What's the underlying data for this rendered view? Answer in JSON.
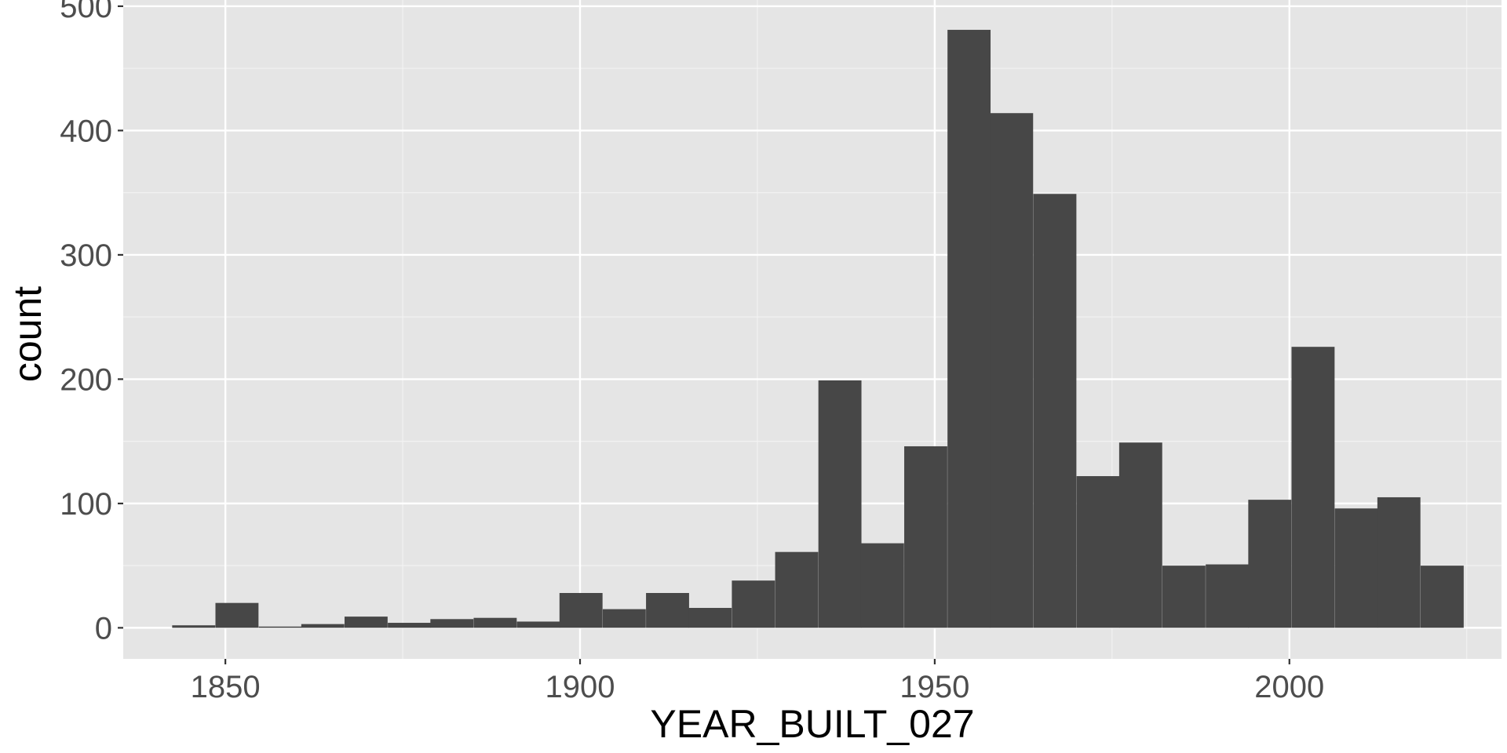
{
  "chart_data": {
    "type": "bar",
    "subtype": "histogram",
    "title": "",
    "xlabel": "YEAR_BUILT_027",
    "ylabel": "count",
    "xlim": [
      1835.6,
      2029.9
    ],
    "ylim": [
      -25,
      505
    ],
    "bin_width": 6.07,
    "bins": [
      {
        "start": 1842.5,
        "count": 2
      },
      {
        "start": 1848.6,
        "count": 20
      },
      {
        "start": 1854.7,
        "count": 1
      },
      {
        "start": 1860.7,
        "count": 3
      },
      {
        "start": 1866.8,
        "count": 9
      },
      {
        "start": 1872.9,
        "count": 4
      },
      {
        "start": 1878.9,
        "count": 7
      },
      {
        "start": 1885.0,
        "count": 8
      },
      {
        "start": 1891.1,
        "count": 5
      },
      {
        "start": 1897.1,
        "count": 28
      },
      {
        "start": 1903.2,
        "count": 15
      },
      {
        "start": 1909.3,
        "count": 28
      },
      {
        "start": 1915.3,
        "count": 16
      },
      {
        "start": 1921.4,
        "count": 38
      },
      {
        "start": 1927.5,
        "count": 61
      },
      {
        "start": 1933.6,
        "count": 199
      },
      {
        "start": 1939.6,
        "count": 68
      },
      {
        "start": 1945.7,
        "count": 146
      },
      {
        "start": 1951.8,
        "count": 481
      },
      {
        "start": 1957.8,
        "count": 414
      },
      {
        "start": 1963.9,
        "count": 349
      },
      {
        "start": 1970.0,
        "count": 122
      },
      {
        "start": 1976.0,
        "count": 149
      },
      {
        "start": 1982.1,
        "count": 50
      },
      {
        "start": 1988.2,
        "count": 51
      },
      {
        "start": 1994.2,
        "count": 103
      },
      {
        "start": 2000.3,
        "count": 226
      },
      {
        "start": 2006.4,
        "count": 96
      },
      {
        "start": 2012.4,
        "count": 105
      },
      {
        "start": 2018.5,
        "count": 50
      }
    ],
    "x_ticks": [
      1850,
      1900,
      1950,
      2000
    ],
    "x_tick_labels": [
      "1850",
      "1900",
      "1950",
      "2000"
    ],
    "y_ticks": [
      0,
      100,
      200,
      300,
      400,
      500
    ],
    "y_tick_labels": [
      "0",
      "100",
      "200",
      "300",
      "400",
      "500"
    ],
    "grid": true,
    "legend": "none",
    "colors": {
      "panel_background": "#e5e5e5",
      "grid_major": "#ffffff",
      "grid_minor": "#f2f2f2",
      "bar_fill": "#474747",
      "tick_text": "#4d4d4d",
      "axis_title_text": "#000000",
      "tick_mark": "#333333"
    }
  }
}
